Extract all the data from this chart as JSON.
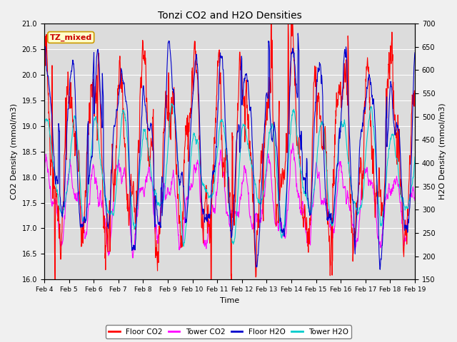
{
  "title": "Tonzi CO2 and H2O Densities",
  "xlabel": "Time",
  "ylabel_left": "CO2 Density (mmol/m3)",
  "ylabel_right": "H2O Density (mmol/m3)",
  "co2_ylim": [
    16.0,
    21.0
  ],
  "h2o_ylim": [
    150,
    700
  ],
  "x_tick_labels": [
    "Feb 4",
    "Feb 5",
    "Feb 6",
    "Feb 7",
    "Feb 8",
    "Feb 9",
    "Feb 10",
    "Feb 11",
    "Feb 12",
    "Feb 13",
    "Feb 14",
    "Feb 15",
    "Feb 16",
    "Feb 17",
    "Feb 18",
    "Feb 19"
  ],
  "annotation_text": "TZ_mixed",
  "annotation_bg": "#FFFFCC",
  "annotation_border": "#CC9900",
  "annotation_color": "#CC0000",
  "floor_co2_color": "#FF0000",
  "tower_co2_color": "#FF00FF",
  "floor_h2o_color": "#0000CC",
  "tower_h2o_color": "#00CCCC",
  "fig_bg_color": "#F0F0F0",
  "plot_bg_color": "#DCDCDC",
  "grid_color": "#FFFFFF",
  "n_points": 1500,
  "seed": 7
}
